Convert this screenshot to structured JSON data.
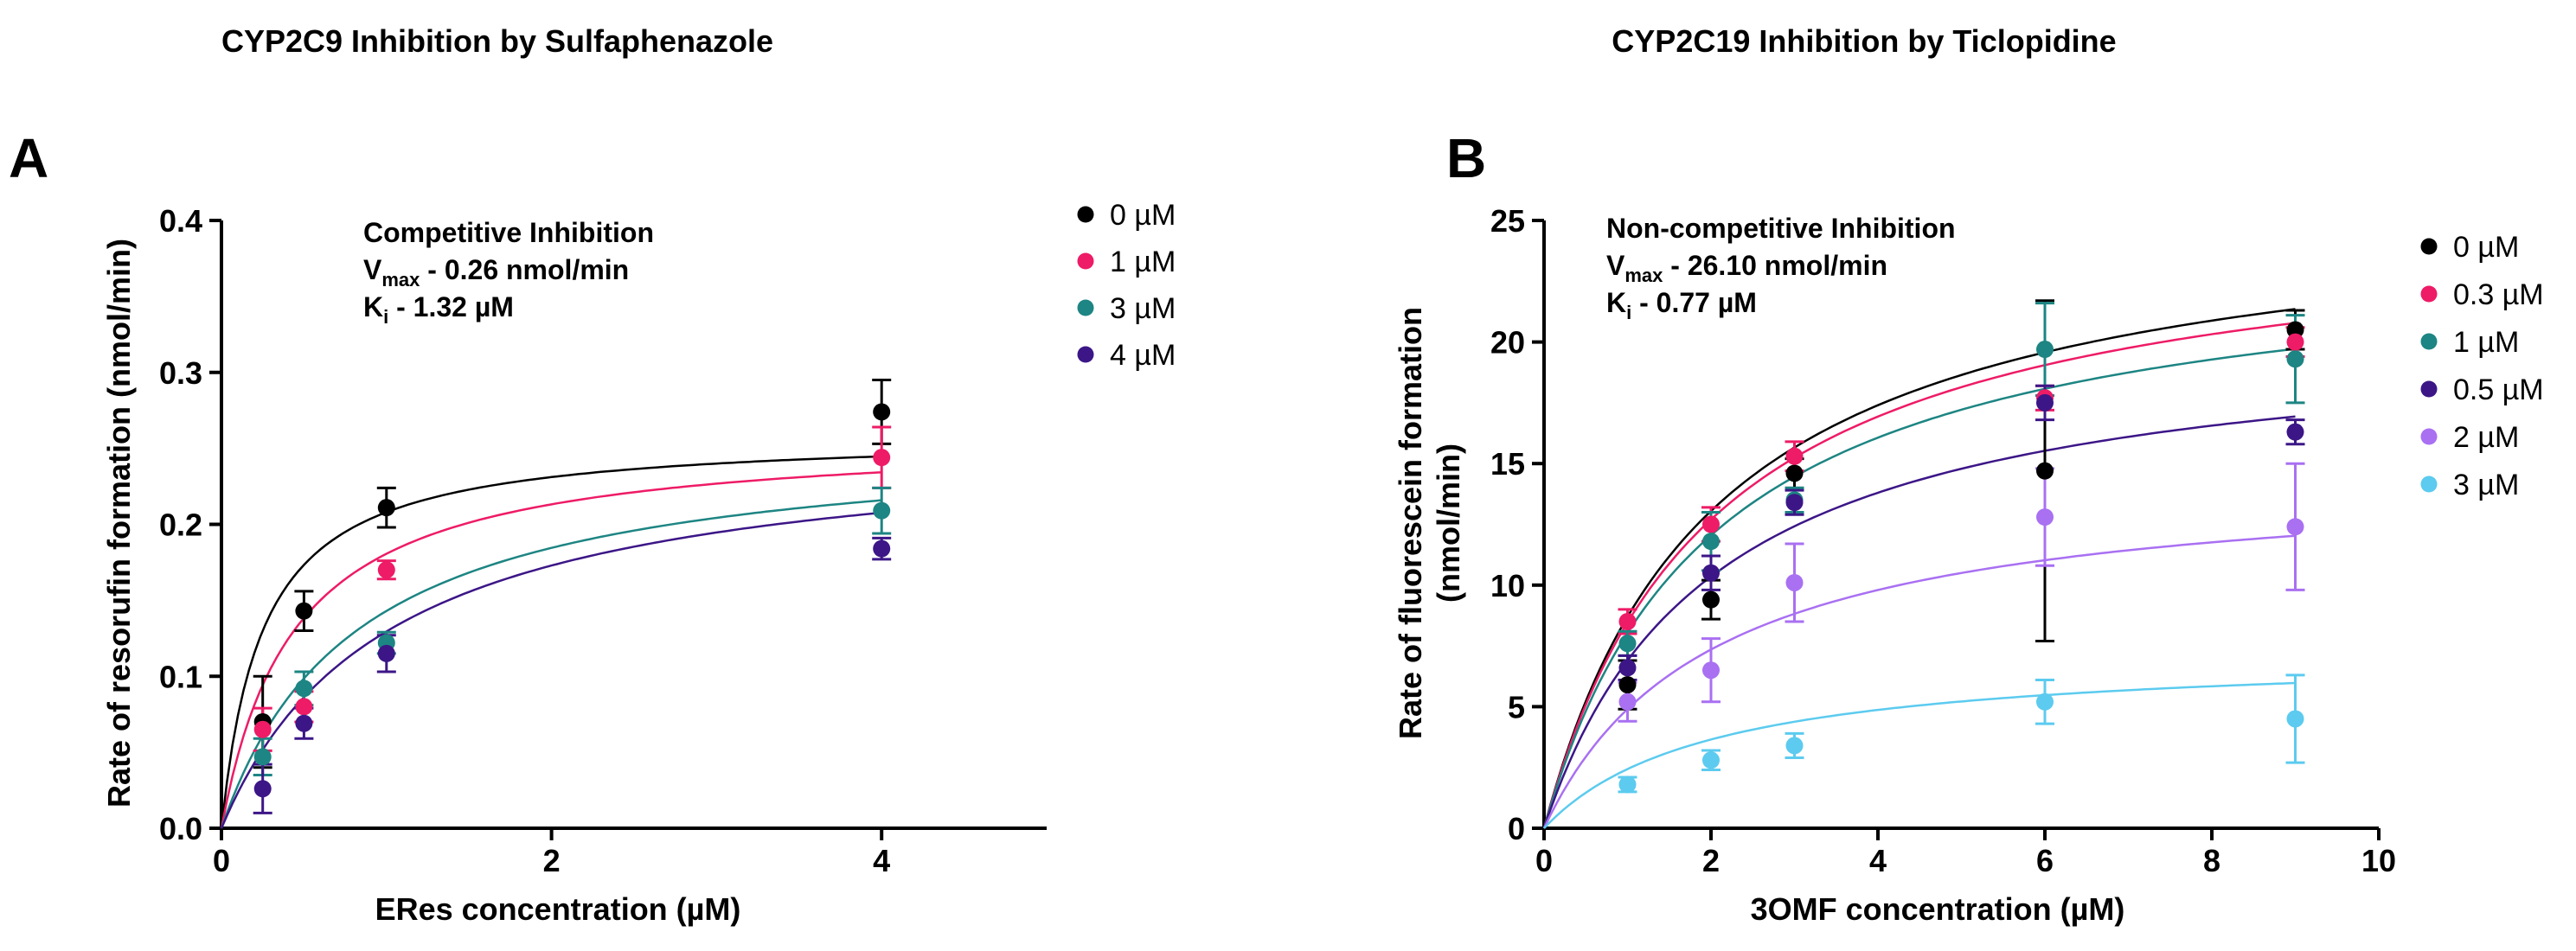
{
  "chart_data": [
    {
      "type": "scatter",
      "panel": "A",
      "title": "CYP2C9 Inhibition by Sulfaphenazole",
      "xlabel": "ERes concentration (µM)",
      "ylabel": "Rate of resorufin formation (nmol/min)",
      "xlim": [
        0,
        5
      ],
      "ylim": [
        0,
        0.4
      ],
      "xticks": [
        0,
        2,
        4
      ],
      "yticks": [
        0.0,
        0.1,
        0.2,
        0.3,
        0.4
      ],
      "xtick_labels": [
        "0",
        "2",
        "4"
      ],
      "ytick_labels": [
        "0.0",
        "0.1",
        "0.2",
        "0.3",
        "0.4"
      ],
      "annotation": {
        "model": "Competitive Inhibition",
        "vmax_prefix": "V",
        "vmax_sub": "max",
        "vmax_text": " - 0.26 nmol/min",
        "ki_prefix": "K",
        "ki_sub": "i",
        "ki_text": " - 1.32 µM"
      },
      "legend_position": "top-right",
      "fit": {
        "model": "competitive",
        "vmax": 0.26,
        "km": 0.25,
        "ki": 1.32
      },
      "x": [
        0.25,
        0.5,
        1,
        4
      ],
      "series": [
        {
          "name": "0 µM",
          "inhibitor": 0,
          "color": "#000000",
          "values": [
            0.07,
            0.143,
            0.211,
            0.274
          ],
          "errors": [
            0.03,
            0.013,
            0.013,
            0.021
          ]
        },
        {
          "name": "1 µM",
          "inhibitor": 1,
          "color": "#ee1b66",
          "values": [
            0.065,
            0.08,
            0.17,
            0.244
          ],
          "errors": [
            0.014,
            0.01,
            0.006,
            0.02
          ]
        },
        {
          "name": "3 µM",
          "inhibitor": 3,
          "color": "#1d8583",
          "values": [
            0.047,
            0.092,
            0.122,
            0.209
          ],
          "errors": [
            0.012,
            0.011,
            0.007,
            0.015
          ]
        },
        {
          "name": "4 µM",
          "inhibitor": 4,
          "color": "#3c1687",
          "values": [
            0.026,
            0.069,
            0.115,
            0.184
          ],
          "errors": [
            0.016,
            0.01,
            0.012,
            0.007
          ]
        }
      ]
    },
    {
      "type": "scatter",
      "panel": "B",
      "title": "CYP2C19 Inhibition by Ticlopidine",
      "xlabel": "3OMF concentration (µM)",
      "ylabel_lines": [
        "Rate of fluorescein formation",
        "(nmol/min)"
      ],
      "xlim": [
        0,
        10
      ],
      "ylim": [
        0,
        25
      ],
      "xticks": [
        0,
        2,
        4,
        6,
        8,
        10
      ],
      "yticks": [
        0,
        5,
        10,
        15,
        20,
        25
      ],
      "xtick_labels": [
        "0",
        "2",
        "4",
        "6",
        "8",
        "10"
      ],
      "ytick_labels": [
        "0",
        "5",
        "10",
        "15",
        "20",
        "25"
      ],
      "annotation": {
        "model": "Non-competitive Inhibition",
        "vmax_prefix": "V",
        "vmax_sub": "max",
        "vmax_text": " - 26.10 nmol/min",
        "ki_prefix": "K",
        "ki_sub": "i",
        "ki_text": " - 0.77 µM"
      },
      "legend_position": "top-right",
      "fit": {
        "model": "non-competitive",
        "vmax": 26.1,
        "km": 2.0,
        "ki": 0.77
      },
      "x": [
        1,
        2,
        3,
        6,
        9
      ],
      "series": [
        {
          "name": "0 µM",
          "color": "#000000",
          "fit_vmax": 26.1,
          "values": [
            5.9,
            9.4,
            14.6,
            14.7,
            20.5
          ],
          "errors": [
            1.0,
            0.8,
            0.6,
            7.0,
            0.8
          ]
        },
        {
          "name": "0.3 µM",
          "color": "#ee1b66",
          "fit_vmax": 25.4,
          "values": [
            8.5,
            12.5,
            15.3,
            17.7,
            20.0
          ],
          "errors": [
            0.5,
            0.7,
            0.6,
            0.5,
            0.6
          ]
        },
        {
          "name": "1 µM",
          "color": "#1d8583",
          "fit_vmax": 24.1,
          "values": [
            7.6,
            11.8,
            13.5,
            19.7,
            19.3
          ],
          "errors": [
            0.5,
            1.2,
            0.5,
            1.9,
            1.8
          ]
        },
        {
          "name": "0.5 µM",
          "color": "#3c1687",
          "fit_vmax": 20.7,
          "values": [
            6.6,
            10.5,
            13.4,
            17.5,
            16.3
          ],
          "errors": [
            0.5,
            0.7,
            0.5,
            0.7,
            0.5
          ]
        },
        {
          "name": "2 µM",
          "color": "#a970f2",
          "fit_vmax": 14.7,
          "values": [
            5.2,
            6.5,
            10.1,
            12.8,
            12.4
          ],
          "errors": [
            0.8,
            1.3,
            1.6,
            2.0,
            2.6
          ]
        },
        {
          "name": "3 µM",
          "color": "#5ccbef",
          "fit_vmax": 7.3,
          "values": [
            1.8,
            2.8,
            3.4,
            5.2,
            4.5
          ],
          "errors": [
            0.3,
            0.4,
            0.5,
            0.9,
            1.8
          ]
        }
      ]
    }
  ]
}
